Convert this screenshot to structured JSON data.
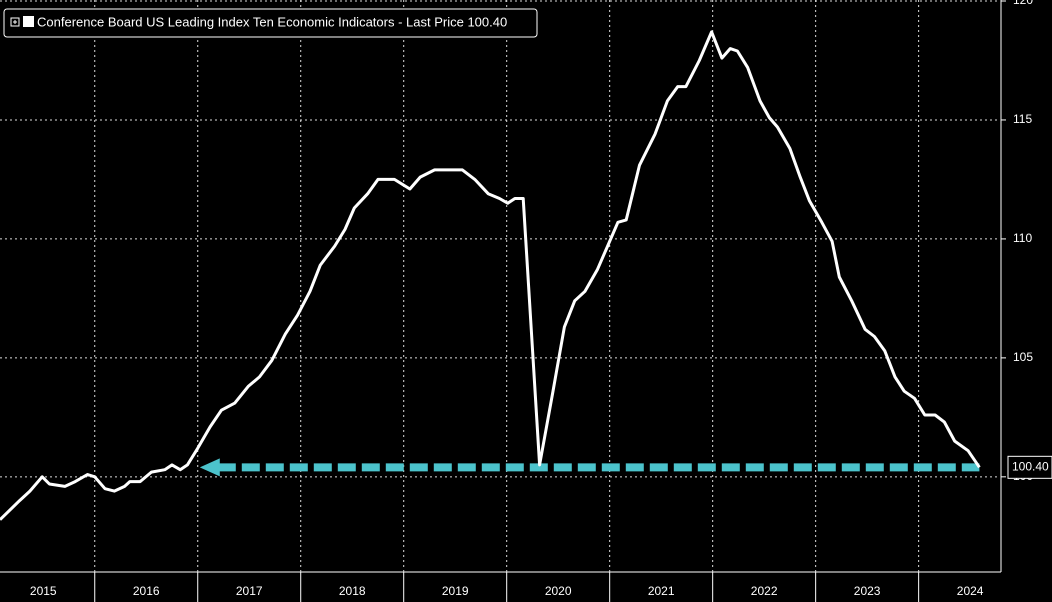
{
  "chart_data": {
    "type": "line",
    "title": "Conference Board US Leading Index Ten Economic Indicators - Last Price 100.40",
    "xlim": [
      2015.08,
      2024.79
    ],
    "ylim": [
      96,
      120
    ],
    "yticks": [
      100,
      105,
      110,
      115,
      120
    ],
    "xgrid": [
      2016,
      2017,
      2018,
      2019,
      2020,
      2021,
      2022,
      2023,
      2024
    ],
    "xticks": [
      {
        "value": 2015.5,
        "label": "2015"
      },
      {
        "value": 2016.5,
        "label": "2016"
      },
      {
        "value": 2017.5,
        "label": "2017"
      },
      {
        "value": 2018.5,
        "label": "2018"
      },
      {
        "value": 2019.5,
        "label": "2019"
      },
      {
        "value": 2020.5,
        "label": "2020"
      },
      {
        "value": 2021.5,
        "label": "2021"
      },
      {
        "value": 2022.5,
        "label": "2022"
      },
      {
        "value": 2023.5,
        "label": "2023"
      },
      {
        "value": 2024.5,
        "label": "2024"
      }
    ],
    "grid": true,
    "series": [
      {
        "name": "Conference Board US Leading Index Ten Economic Indicators",
        "color": "#ffffff",
        "x": [
          2015.08,
          2015.27,
          2015.37,
          2015.49,
          2015.56,
          2015.71,
          2015.81,
          2015.93,
          2016.0,
          2016.1,
          2016.19,
          2016.29,
          2016.34,
          2016.44,
          2016.55,
          2016.68,
          2016.75,
          2016.83,
          2016.9,
          2017.0,
          2017.12,
          2017.23,
          2017.36,
          2017.49,
          2017.6,
          2017.72,
          2017.85,
          2017.97,
          2018.09,
          2018.19,
          2018.33,
          2018.43,
          2018.52,
          2018.65,
          2018.75,
          2018.91,
          2019.06,
          2019.16,
          2019.3,
          2019.5,
          2019.57,
          2019.69,
          2019.82,
          2019.93,
          2020.01,
          2020.08,
          2020.16,
          2020.24,
          2020.32,
          2020.45,
          2020.56,
          2020.66,
          2020.76,
          2020.88,
          2020.98,
          2021.08,
          2021.16,
          2021.29,
          2021.44,
          2021.56,
          2021.66,
          2021.74,
          2021.87,
          2021.99,
          2022.09,
          2022.17,
          2022.24,
          2022.34,
          2022.46,
          2022.55,
          2022.63,
          2022.75,
          2022.85,
          2022.94,
          2023.06,
          2023.16,
          2023.23,
          2023.35,
          2023.48,
          2023.57,
          2023.67,
          2023.77,
          2023.86,
          2023.96,
          2024.06,
          2024.16,
          2024.25,
          2024.35,
          2024.48,
          2024.59
        ],
        "values": [
          98.2,
          99.0,
          99.4,
          100.0,
          99.7,
          99.6,
          99.8,
          100.1,
          100.0,
          99.5,
          99.4,
          99.6,
          99.8,
          99.8,
          100.2,
          100.3,
          100.5,
          100.3,
          100.5,
          101.2,
          102.1,
          102.8,
          103.1,
          103.8,
          104.2,
          104.9,
          106.0,
          106.8,
          107.8,
          108.9,
          109.7,
          110.4,
          111.3,
          111.9,
          112.5,
          112.5,
          112.1,
          112.6,
          112.9,
          112.9,
          112.9,
          112.5,
          111.9,
          111.7,
          111.5,
          111.7,
          111.7,
          106.1,
          100.5,
          103.6,
          106.3,
          107.4,
          107.8,
          108.7,
          109.7,
          110.7,
          110.8,
          113.1,
          114.4,
          115.8,
          116.4,
          116.4,
          117.5,
          118.7,
          117.6,
          118.0,
          117.9,
          117.2,
          115.8,
          115.1,
          114.7,
          113.8,
          112.6,
          111.6,
          110.7,
          109.9,
          108.4,
          107.4,
          106.2,
          105.9,
          105.3,
          104.2,
          103.6,
          103.3,
          102.6,
          102.6,
          102.3,
          101.5,
          101.1,
          100.4
        ]
      }
    ],
    "last_price": {
      "value": 100.4,
      "label": "100.40",
      "color": "#4cc3cc",
      "x": [
        2017.02,
        2024.59
      ]
    }
  }
}
